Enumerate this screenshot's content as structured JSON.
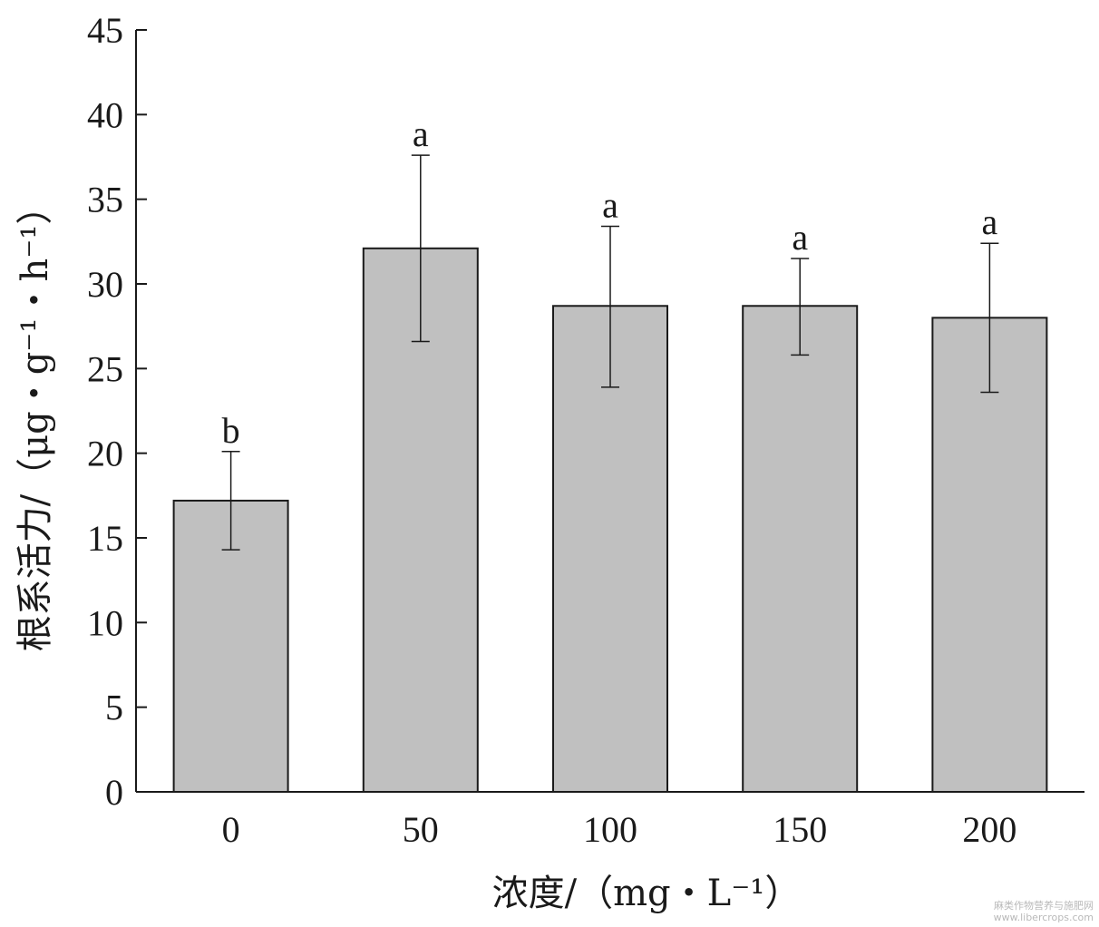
{
  "chart_data": {
    "type": "bar",
    "categories": [
      "0",
      "50",
      "100",
      "150",
      "200"
    ],
    "values": [
      17.2,
      32.1,
      28.7,
      28.7,
      28.0
    ],
    "error_upper": [
      20.1,
      37.6,
      33.4,
      31.5,
      32.4
    ],
    "error_lower": [
      14.3,
      26.6,
      23.9,
      25.8,
      23.6
    ],
    "significance_labels": [
      "b",
      "a",
      "a",
      "a",
      "a"
    ],
    "xlabel": "浓度/（mg・L⁻¹）",
    "ylabel": "根系活力/（μg・g⁻¹・h⁻¹）",
    "ylim": [
      0,
      45
    ],
    "yticks": [
      0,
      5,
      10,
      15,
      20,
      25,
      30,
      35,
      40,
      45
    ],
    "grid": false,
    "colors": {
      "bar_fill": "#c0c0c0",
      "bar_stroke": "#1a1a1a",
      "axis": "#1a1a1a"
    }
  },
  "watermark": {
    "line1": "麻类作物营养与施肥网",
    "line2": "www.libercrops.com"
  }
}
